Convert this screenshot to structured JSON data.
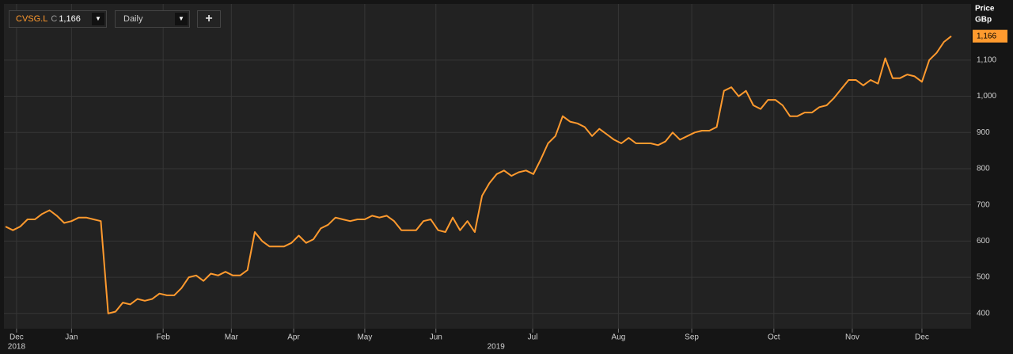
{
  "header": {
    "symbol": "CVSG.L",
    "close_prefix": "C",
    "close": "1,166",
    "interval": "Daily",
    "add_button": "+"
  },
  "chart_data": {
    "type": "line",
    "y_axis_title": "Price",
    "y_axis_unit": "GBp",
    "last_price_label": "1,166",
    "color": "#ff9a2e",
    "grid": true,
    "values": [
      640,
      630,
      640,
      660,
      660,
      675,
      685,
      670,
      650,
      655,
      665,
      665,
      660,
      655,
      400,
      405,
      430,
      425,
      440,
      435,
      440,
      455,
      450,
      450,
      470,
      500,
      505,
      490,
      510,
      505,
      515,
      505,
      505,
      520,
      625,
      600,
      585,
      585,
      585,
      595,
      615,
      595,
      605,
      635,
      645,
      665,
      660,
      655,
      660,
      660,
      670,
      665,
      670,
      655,
      630,
      630,
      630,
      655,
      660,
      630,
      625,
      665,
      630,
      655,
      625,
      725,
      760,
      785,
      795,
      780,
      790,
      795,
      785,
      825,
      870,
      890,
      945,
      930,
      925,
      915,
      890,
      910,
      895,
      880,
      870,
      885,
      870,
      870,
      870,
      865,
      875,
      900,
      880,
      890,
      900,
      905,
      905,
      915,
      1015,
      1025,
      1000,
      1015,
      975,
      965,
      990,
      990,
      975,
      945,
      945,
      955,
      955,
      970,
      975,
      995,
      1020,
      1045,
      1045,
      1030,
      1045,
      1035,
      1105,
      1050,
      1050,
      1060,
      1055,
      1040,
      1100,
      1120,
      1150,
      1166
    ],
    "xlim": [
      0,
      129
    ],
    "xticks": [
      {
        "value": 1.5,
        "label": "Dec"
      },
      {
        "value": 9,
        "label": "Jan"
      },
      {
        "value": 21.5,
        "label": "Feb"
      },
      {
        "value": 30.8,
        "label": "Mar"
      },
      {
        "value": 39.3,
        "label": "Apr"
      },
      {
        "value": 49,
        "label": "May"
      },
      {
        "value": 58.7,
        "label": "Jun"
      },
      {
        "value": 71.9,
        "label": "Jul"
      },
      {
        "value": 83.6,
        "label": "Aug"
      },
      {
        "value": 93.6,
        "label": "Sep"
      },
      {
        "value": 104.8,
        "label": "Oct"
      },
      {
        "value": 115.5,
        "label": "Nov"
      },
      {
        "value": 125,
        "label": "Dec"
      }
    ],
    "x_year_labels": [
      {
        "value": 1.5,
        "label": "2018"
      },
      {
        "value": 66.9,
        "label": "2019"
      }
    ],
    "ylim": [
      358,
      1255
    ],
    "yticks": [
      400,
      500,
      600,
      700,
      800,
      900,
      {
        "value": 1000,
        "label": "1,000"
      },
      {
        "value": 1100,
        "label": "1,100"
      }
    ]
  }
}
